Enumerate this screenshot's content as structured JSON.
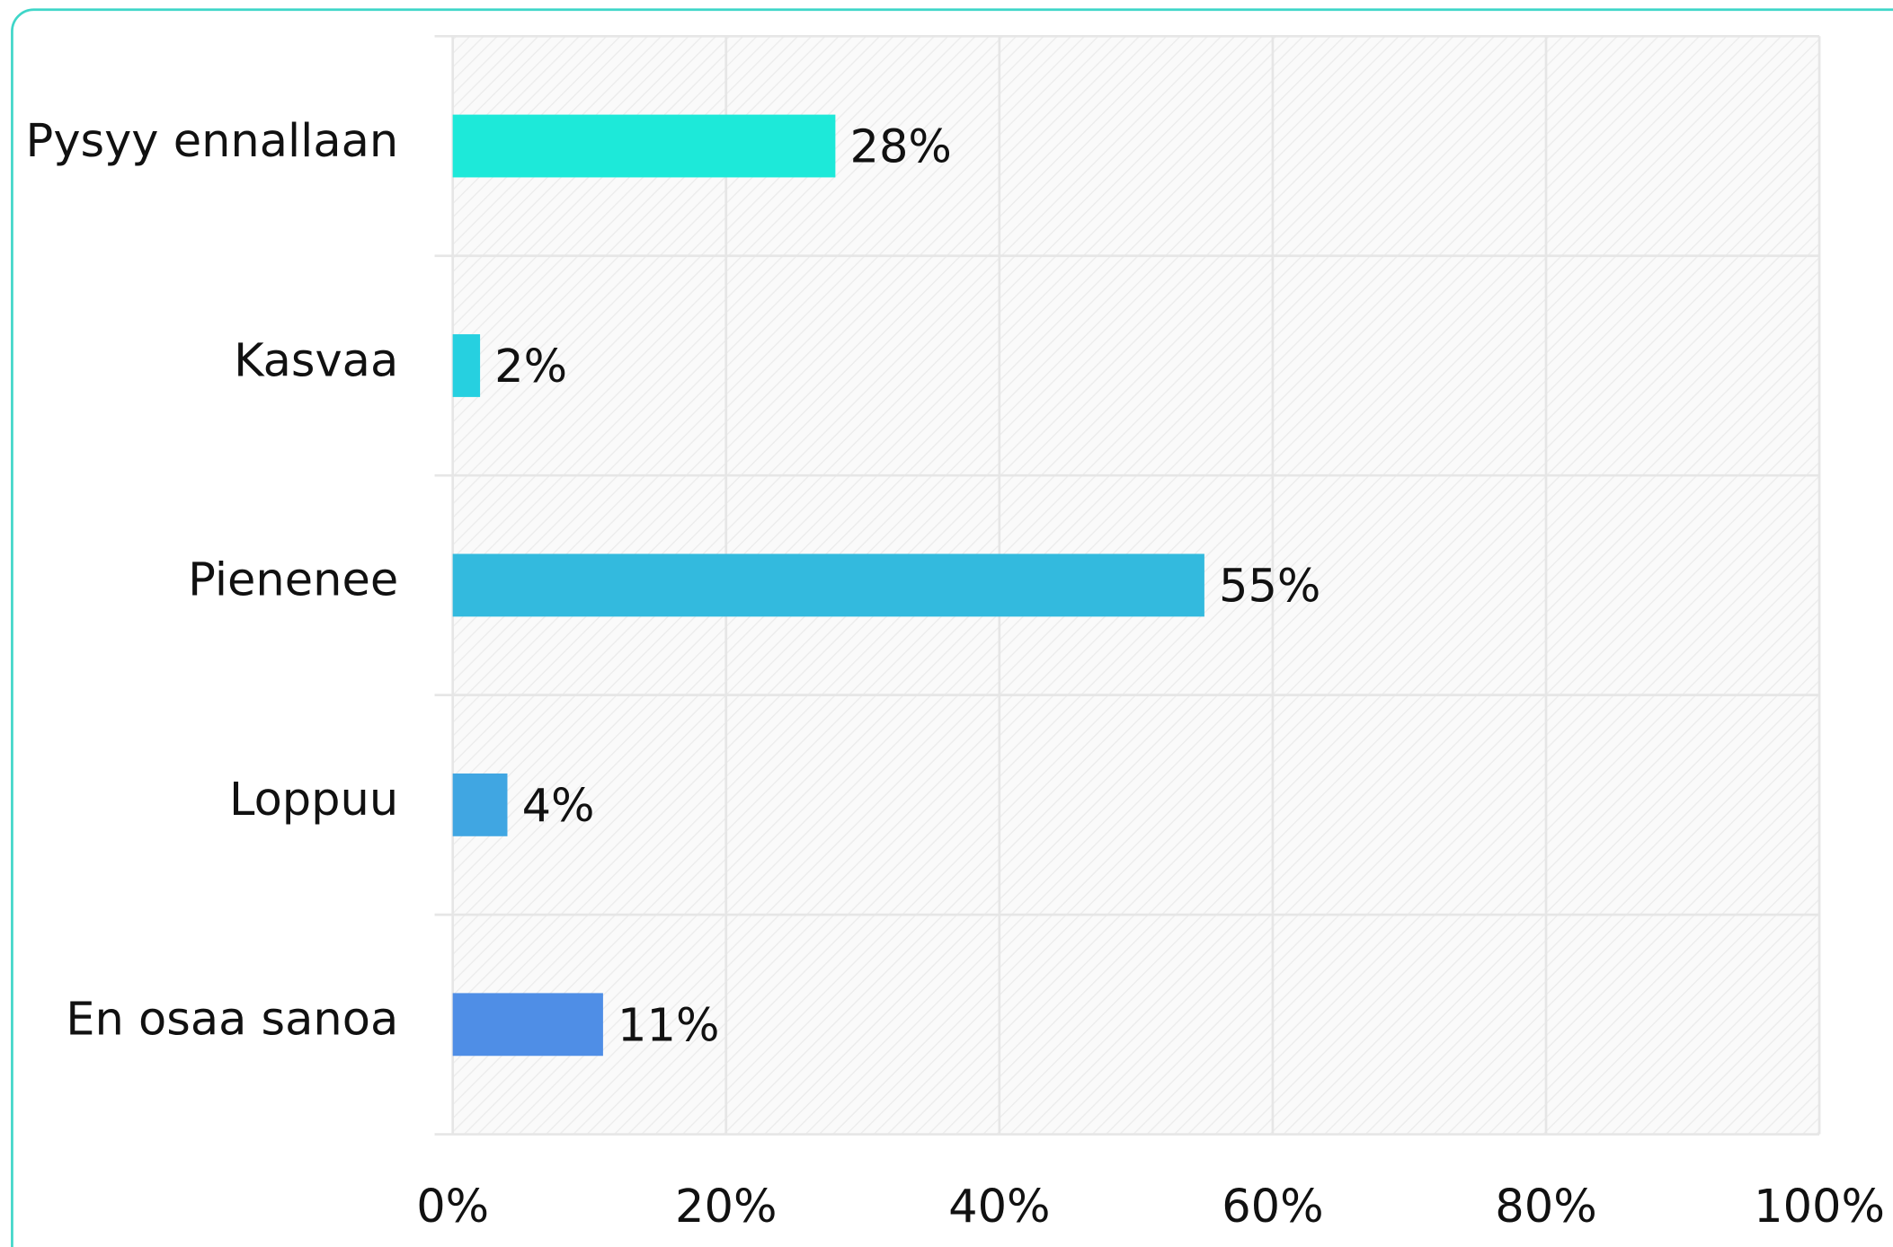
{
  "chart_data": {
    "type": "bar",
    "orientation": "horizontal",
    "categories": [
      "Pysyy ennallaan",
      "Kasvaa",
      "Pienenee",
      "Loppuu",
      "En osaa sanoa"
    ],
    "values": [
      28,
      2,
      55,
      4,
      11
    ],
    "value_labels": [
      "28%",
      "2%",
      "55%",
      "4%",
      "11%"
    ],
    "colors": [
      "#1de9d9",
      "#26d0e0",
      "#33bade",
      "#40a6e2",
      "#4f8ee6"
    ],
    "xlim": [
      0,
      100
    ],
    "xticks": [
      {
        "value": 0,
        "label": "0%"
      },
      {
        "value": 20,
        "label": "20%"
      },
      {
        "value": 40,
        "label": "40%"
      },
      {
        "value": 60,
        "label": "60%"
      },
      {
        "value": 80,
        "label": "80%"
      },
      {
        "value": 100,
        "label": "100%"
      }
    ],
    "grid": true
  }
}
